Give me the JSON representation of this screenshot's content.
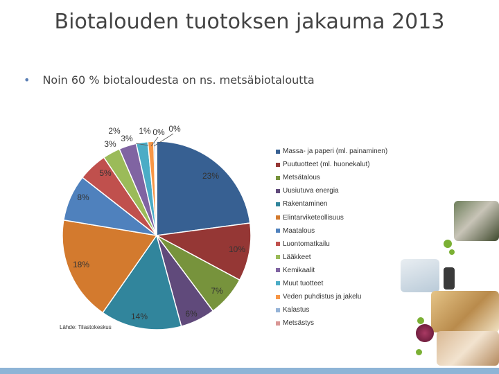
{
  "slide": {
    "title": "Biotalouden tuotoksen jakauma 2013",
    "bullet": "Noin 60 % biotaloudesta on ns. metsäbiotaloutta",
    "source": "Lähde: Tilastokeskus"
  },
  "chart_data": {
    "type": "pie",
    "title": "",
    "legend_position": "right",
    "slices": [
      {
        "label": "Massa- ja paperi (ml. painaminen)",
        "value": 23,
        "display": "23%",
        "color": "#376092"
      },
      {
        "label": "Puutuotteet (ml. huonekalut)",
        "value": 10,
        "display": "10%",
        "color": "#953735"
      },
      {
        "label": "Metsätalous",
        "value": 7,
        "display": "7%",
        "color": "#77933c"
      },
      {
        "label": "Uusiutuva energia",
        "value": 6,
        "display": "6%",
        "color": "#604a7b"
      },
      {
        "label": "Rakentaminen",
        "value": 14,
        "display": "14%",
        "color": "#31859c"
      },
      {
        "label": "Elintarviketeollisuus",
        "value": 18,
        "display": "18%",
        "color": "#d37a2e"
      },
      {
        "label": "Maatalous",
        "value": 8,
        "display": "8%",
        "color": "#4f81bd"
      },
      {
        "label": "Luontomatkailu",
        "value": 5,
        "display": "5%",
        "color": "#c0504d"
      },
      {
        "label": "Lääkkeet",
        "value": 3,
        "display": "3%",
        "color": "#9bbb59"
      },
      {
        "label": "Kemikaalit",
        "value": 3,
        "display": "3%",
        "color": "#8064a2"
      },
      {
        "label": "Muut tuotteet",
        "value": 2,
        "display": "2%",
        "color": "#4bacc6"
      },
      {
        "label": "Veden puhdistus ja jakelu",
        "value": 1,
        "display": "1%",
        "color": "#f79646"
      },
      {
        "label": "Kalastus",
        "value": 0.3,
        "display": "0%",
        "color": "#95b3d7"
      },
      {
        "label": "Metsästys",
        "value": 0.2,
        "display": "0%",
        "color": "#d99694"
      }
    ]
  },
  "theme": {
    "accent": "#8eb4d6",
    "bullet_color": "#5b7fb5"
  }
}
